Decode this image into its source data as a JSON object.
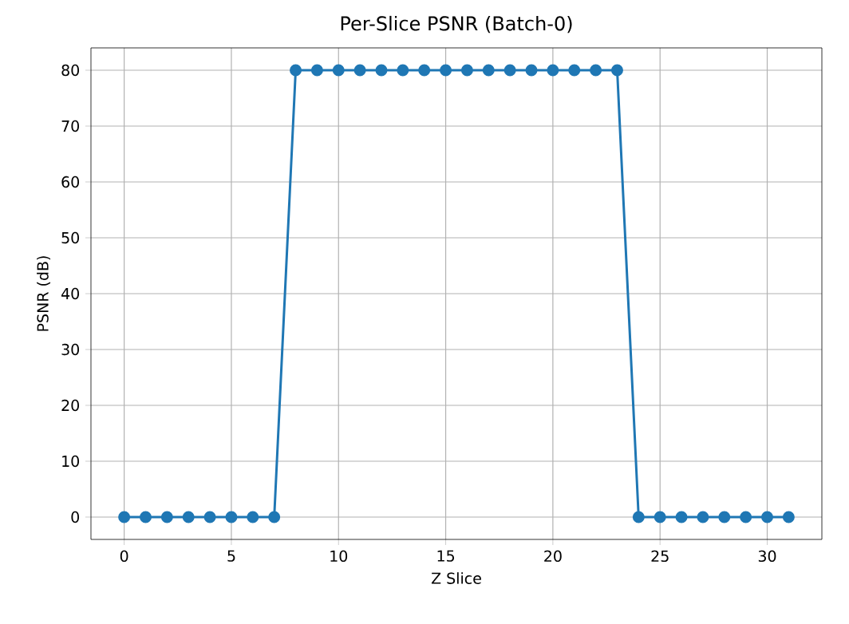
{
  "chart_data": {
    "type": "line",
    "title": "Per-Slice PSNR (Batch-0)",
    "xlabel": "Z Slice",
    "ylabel": "PSNR (dB)",
    "x": [
      0,
      1,
      2,
      3,
      4,
      5,
      6,
      7,
      8,
      9,
      10,
      11,
      12,
      13,
      14,
      15,
      16,
      17,
      18,
      19,
      20,
      21,
      22,
      23,
      24,
      25,
      26,
      27,
      28,
      29,
      30,
      31
    ],
    "values": [
      0,
      0,
      0,
      0,
      0,
      0,
      0,
      0,
      80,
      80,
      80,
      80,
      80,
      80,
      80,
      80,
      80,
      80,
      80,
      80,
      80,
      80,
      80,
      80,
      0,
      0,
      0,
      0,
      0,
      0,
      0,
      0
    ],
    "color": "#1f77b4",
    "marker": "circle",
    "line_style": "solid",
    "grid": true,
    "xlim": [
      -1.55,
      32.55
    ],
    "ylim": [
      -4,
      84
    ],
    "xticks": [
      0,
      5,
      10,
      15,
      20,
      25,
      30
    ],
    "yticks": [
      0,
      10,
      20,
      30,
      40,
      50,
      60,
      70,
      80
    ]
  }
}
